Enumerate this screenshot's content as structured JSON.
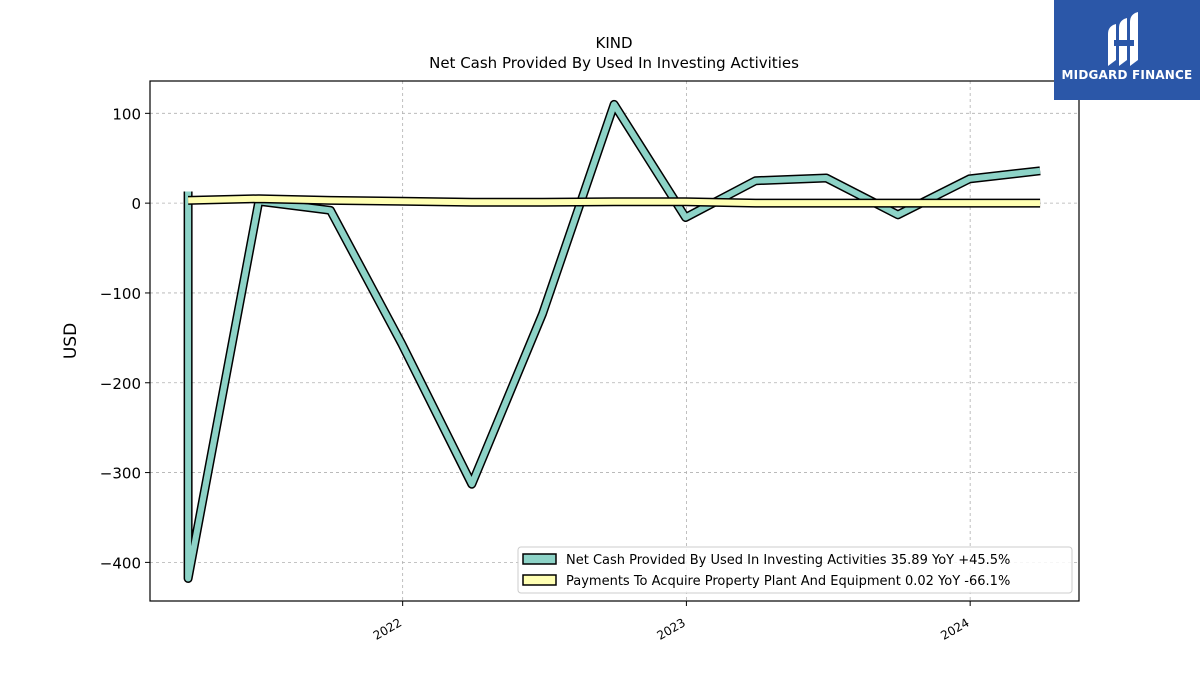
{
  "chart_data": {
    "type": "line",
    "title": "KIND",
    "subtitle": "Net Cash Provided By Used In Investing Activities",
    "ylabel": "USD",
    "xlabel": "",
    "ylim": [
      -443,
      136
    ],
    "xlim": [
      "2021-02-10",
      "2024-05-20"
    ],
    "x_ticks": [
      "2022",
      "2023",
      "2024"
    ],
    "y_ticks": [
      -400,
      -300,
      -200,
      -100,
      0,
      100
    ],
    "grid": true,
    "legend_position": "lower-right",
    "series": [
      {
        "name": "Net Cash Provided By Used In Investing Activities  35.89 YoY +45.5%",
        "color": "#8dd3c7",
        "points": [
          {
            "x": "2021-03-31",
            "y": 13
          },
          {
            "x": "2021-03-31",
            "y": -418
          },
          {
            "x": "2021-06-30",
            "y": 2
          },
          {
            "x": "2021-09-30",
            "y": -8
          },
          {
            "x": "2021-12-31",
            "y": -157
          },
          {
            "x": "2022-03-31",
            "y": -313
          },
          {
            "x": "2022-06-30",
            "y": -123
          },
          {
            "x": "2022-09-30",
            "y": 110
          },
          {
            "x": "2022-12-31",
            "y": -16
          },
          {
            "x": "2023-03-31",
            "y": 25
          },
          {
            "x": "2023-06-30",
            "y": 28
          },
          {
            "x": "2023-09-30",
            "y": -13
          },
          {
            "x": "2023-12-31",
            "y": 27
          },
          {
            "x": "2024-03-31",
            "y": 36
          }
        ]
      },
      {
        "name": "Payments To Acquire Property Plant And Equipment  0.02 YoY -66.1%",
        "color": "#ffffb3",
        "points": [
          {
            "x": "2021-03-31",
            "y": 3
          },
          {
            "x": "2021-06-30",
            "y": 5
          },
          {
            "x": "2021-09-30",
            "y": 3
          },
          {
            "x": "2021-12-31",
            "y": 2
          },
          {
            "x": "2022-03-31",
            "y": 1
          },
          {
            "x": "2022-06-30",
            "y": 1
          },
          {
            "x": "2022-09-30",
            "y": 1.5
          },
          {
            "x": "2022-12-31",
            "y": 1.5
          },
          {
            "x": "2023-03-31",
            "y": 0
          },
          {
            "x": "2023-06-30",
            "y": 0
          },
          {
            "x": "2023-09-30",
            "y": 0
          },
          {
            "x": "2023-12-31",
            "y": 0
          },
          {
            "x": "2024-03-31",
            "y": 0
          }
        ]
      }
    ]
  },
  "brand": {
    "name": "MIDGARD FINANCE",
    "color": "#2b57a8"
  }
}
